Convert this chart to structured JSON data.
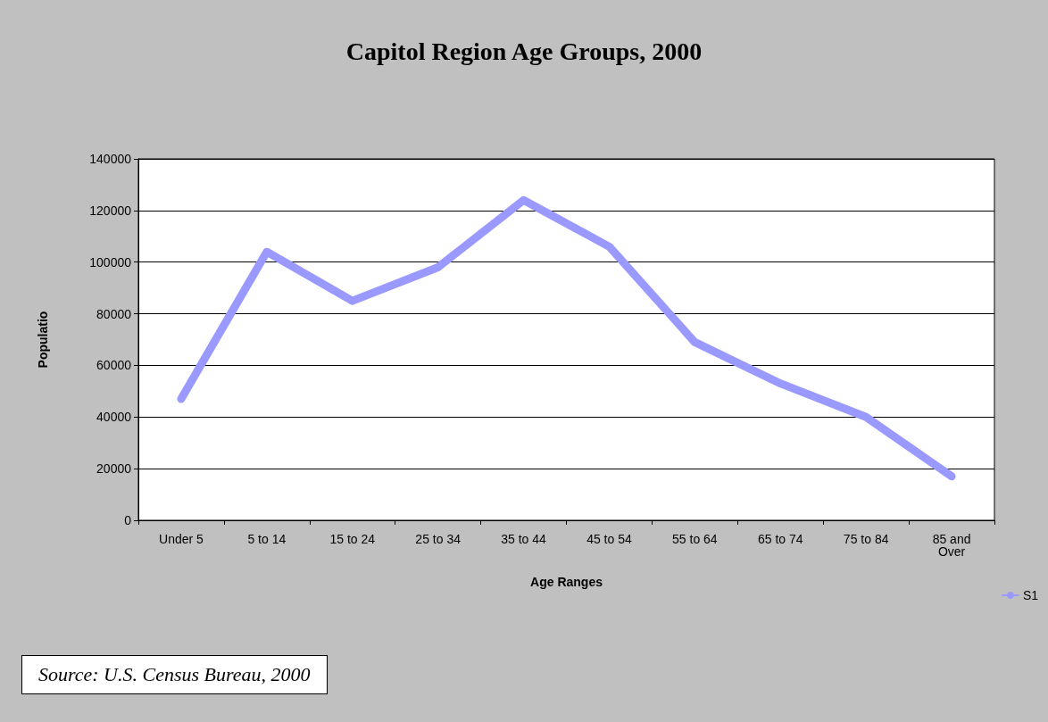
{
  "chart_data": {
    "type": "line",
    "title": "Capitol Region Age Groups, 2000",
    "xlabel": "Age Ranges",
    "ylabel": "Populatio",
    "categories": [
      "Under 5",
      "5 to 14",
      "15 to 24",
      "25 to 34",
      "35 to 44",
      "45 to 54",
      "55 to 64",
      "65 to 74",
      "75 to 84",
      "85 and\nOver"
    ],
    "series": [
      {
        "name": "S1",
        "color": "#9999ff",
        "values": [
          47000,
          104000,
          85000,
          98000,
          124000,
          106000,
          69000,
          53000,
          40000,
          17000
        ]
      }
    ],
    "ylim": [
      0,
      140000
    ],
    "yticks": [
      0,
      20000,
      40000,
      60000,
      80000,
      100000,
      120000,
      140000
    ],
    "grid": "y",
    "legend": "right",
    "line_style": "solid",
    "annotations": [
      "Source: U.S. Census Bureau, 2000"
    ]
  }
}
